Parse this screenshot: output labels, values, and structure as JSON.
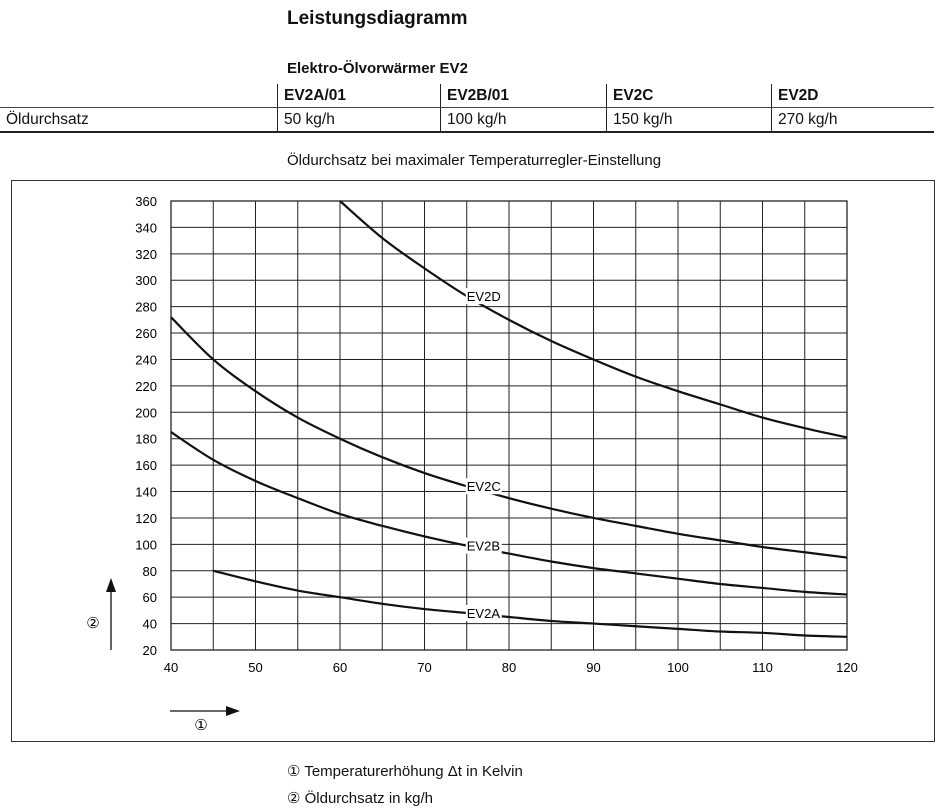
{
  "title": "Leistungsdiagramm",
  "table": {
    "caption": "Elektro-Ölvorwärmer EV2",
    "row_label": "Öldurchsatz",
    "columns": [
      "EV2A/01",
      "EV2B/01",
      "EV2C",
      "EV2D"
    ],
    "values": [
      "50 kg/h",
      "100 kg/h",
      "150 kg/h",
      "270 kg/h"
    ]
  },
  "chart_caption": "Öldurchsatz bei maximaler Temperaturregler-Einstellung",
  "axis_markers": {
    "x": "①",
    "y": "②"
  },
  "legend": [
    "① Temperaturerhöhung Δt in Kelvin",
    "② Öldurchsatz in kg/h"
  ],
  "chart_data": {
    "type": "line",
    "title": "Öldurchsatz bei maximaler Temperaturregler-Einstellung",
    "xlabel": "Temperaturerhöhung Δt in Kelvin",
    "ylabel": "Öldurchsatz in kg/h",
    "xlim": [
      40,
      120
    ],
    "ylim": [
      20,
      360
    ],
    "grid": true,
    "x_ticks": [
      "40",
      "50",
      "60",
      "70",
      "80",
      "90",
      "100",
      "110",
      "120"
    ],
    "y_ticks": [
      "20",
      "40",
      "60",
      "80",
      "100",
      "120",
      "140",
      "160",
      "180",
      "200",
      "220",
      "240",
      "260",
      "280",
      "300",
      "320",
      "340",
      "360"
    ],
    "series": [
      {
        "name": "EV2D",
        "label_x": 75,
        "x": [
          60,
          65,
          70,
          75,
          80,
          85,
          90,
          95,
          100,
          105,
          110,
          115,
          120
        ],
        "values": [
          360,
          332,
          309,
          288,
          270,
          254,
          240,
          227,
          216,
          206,
          196,
          188,
          181
        ]
      },
      {
        "name": "EV2C",
        "label_x": 75,
        "x": [
          40,
          45,
          50,
          55,
          60,
          65,
          70,
          75,
          80,
          85,
          90,
          95,
          100,
          105,
          110,
          115,
          120
        ],
        "values": [
          272,
          240,
          216,
          196,
          180,
          166,
          154,
          144,
          135,
          127,
          120,
          114,
          108,
          103,
          98,
          94,
          90
        ]
      },
      {
        "name": "EV2B",
        "label_x": 75,
        "x": [
          40,
          45,
          50,
          55,
          60,
          65,
          70,
          75,
          80,
          85,
          90,
          95,
          100,
          105,
          110,
          115,
          120
        ],
        "values": [
          185,
          164,
          148,
          135,
          123,
          114,
          106,
          99,
          93,
          87,
          82,
          78,
          74,
          70,
          67,
          64,
          62
        ]
      },
      {
        "name": "EV2A",
        "label_x": 75,
        "x": [
          45,
          50,
          55,
          60,
          65,
          70,
          75,
          80,
          85,
          90,
          95,
          100,
          105,
          110,
          115,
          120
        ],
        "values": [
          80,
          72,
          65,
          60,
          55,
          51,
          48,
          45,
          42,
          40,
          38,
          36,
          34,
          33,
          31,
          30
        ]
      }
    ]
  }
}
